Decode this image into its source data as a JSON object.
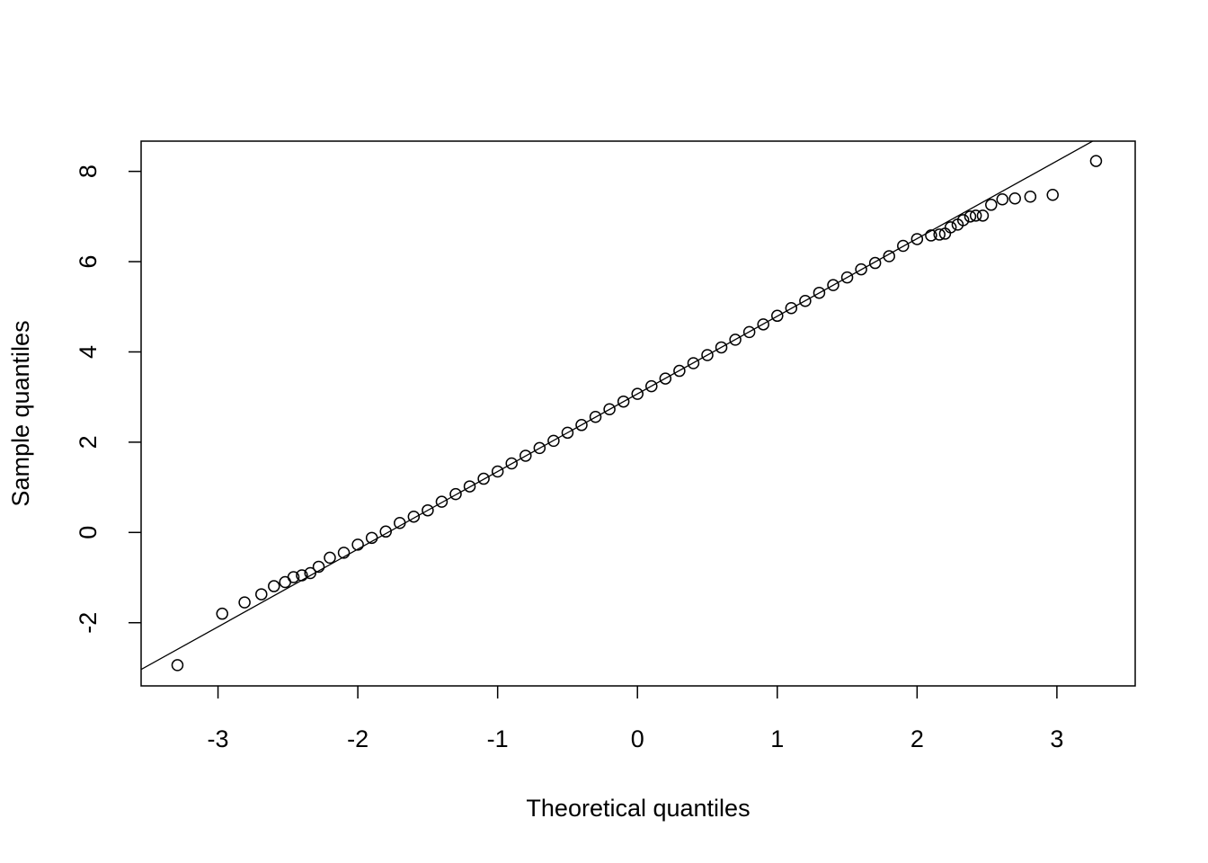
{
  "chart_data": {
    "type": "scatter",
    "xlabel": "Theoretical quantiles",
    "ylabel": "Sample quantiles",
    "xlim": [
      -3.55,
      3.56
    ],
    "ylim": [
      -3.4,
      8.67
    ],
    "xticks": [
      -3,
      -2,
      -1,
      0,
      1,
      2,
      3
    ],
    "yticks": [
      -2,
      0,
      2,
      4,
      6,
      8
    ],
    "color": "#000000",
    "reference_line": {
      "intercept": 3.07,
      "slope": 1.72
    },
    "x": [
      -3.29,
      -2.97,
      -2.81,
      -2.69,
      -2.6,
      -2.52,
      -2.46,
      -2.4,
      -2.34,
      -2.28,
      -2.2,
      -2.1,
      -2.0,
      -1.9,
      -1.8,
      -1.7,
      -1.6,
      -1.5,
      -1.4,
      -1.3,
      -1.2,
      -1.1,
      -1.0,
      -0.9,
      -0.8,
      -0.7,
      -0.6,
      -0.5,
      -0.4,
      -0.3,
      -0.2,
      -0.1,
      0.0,
      0.1,
      0.2,
      0.3,
      0.4,
      0.5,
      0.6,
      0.7,
      0.8,
      0.9,
      1.0,
      1.1,
      1.2,
      1.3,
      1.4,
      1.5,
      1.6,
      1.7,
      1.8,
      1.9,
      2.0,
      2.1,
      2.16,
      2.2,
      2.24,
      2.29,
      2.33,
      2.38,
      2.42,
      2.47,
      2.53,
      2.61,
      2.7,
      2.81,
      2.97,
      3.28
    ],
    "values": [
      -2.94,
      -1.8,
      -1.55,
      -1.37,
      -1.19,
      -1.1,
      -0.99,
      -0.95,
      -0.9,
      -0.76,
      -0.56,
      -0.45,
      -0.27,
      -0.12,
      0.02,
      0.21,
      0.35,
      0.49,
      0.68,
      0.85,
      1.02,
      1.19,
      1.35,
      1.53,
      1.7,
      1.87,
      2.03,
      2.21,
      2.38,
      2.56,
      2.73,
      2.9,
      3.07,
      3.24,
      3.41,
      3.58,
      3.75,
      3.93,
      4.1,
      4.27,
      4.44,
      4.61,
      4.8,
      4.97,
      5.13,
      5.31,
      5.48,
      5.65,
      5.83,
      5.97,
      6.12,
      6.35,
      6.5,
      6.58,
      6.6,
      6.62,
      6.76,
      6.82,
      6.92,
      7.0,
      7.02,
      7.02,
      7.26,
      7.38,
      7.4,
      7.44,
      7.48,
      8.23
    ]
  }
}
